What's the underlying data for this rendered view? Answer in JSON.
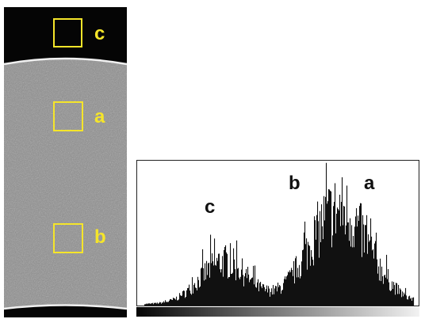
{
  "scan": {
    "colors": {
      "background": "#050505",
      "tissue": "#8a8a8a",
      "edge": "#f0f0f0",
      "roi": "#f5e52a"
    },
    "regions": [
      {
        "label": "c"
      },
      {
        "label": "a"
      },
      {
        "label": "b"
      }
    ]
  },
  "histogram": {
    "labels": {
      "c": "c",
      "b": "b",
      "a": "a"
    },
    "peak_labels": {
      "c": "c",
      "b": "b",
      "a": "a"
    },
    "colors": {
      "bars": "#111111",
      "frame": "#222222"
    }
  }
}
